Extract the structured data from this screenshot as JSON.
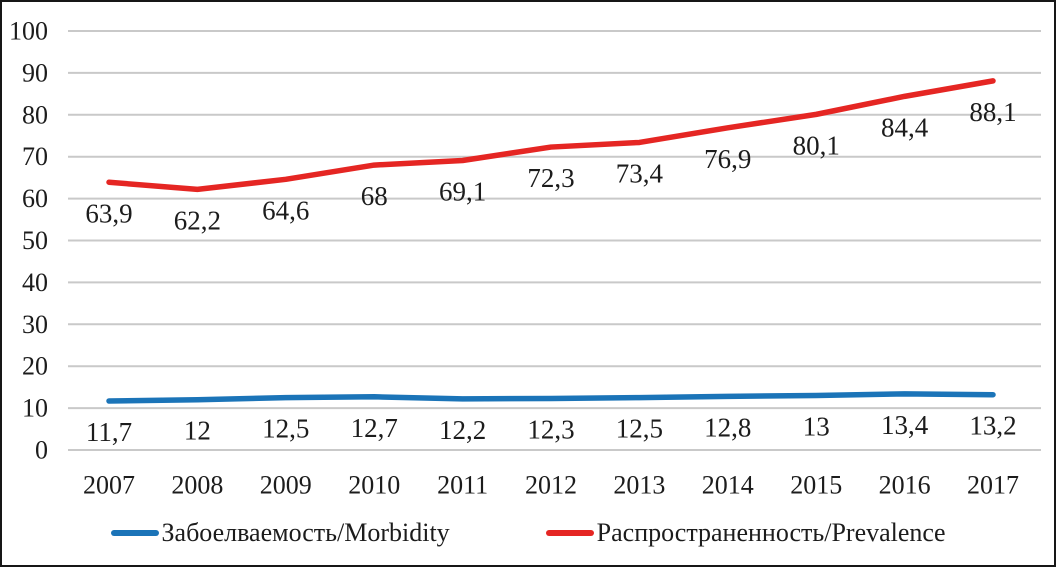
{
  "chart_data": {
    "type": "line",
    "title": "",
    "xlabel": "",
    "ylabel": "",
    "x": [
      "2007",
      "2008",
      "2009",
      "2010",
      "2011",
      "2012",
      "2013",
      "2014",
      "2015",
      "2016",
      "2017"
    ],
    "ylim": [
      0,
      100
    ],
    "yticks": [
      "0",
      "10",
      "20",
      "30",
      "40",
      "50",
      "60",
      "70",
      "80",
      "90",
      "100"
    ],
    "grid": "horizontal",
    "legend_position": "bottom",
    "colors": {
      "morbidity_line": "#1B74B8",
      "prevalence_line": "#E52623",
      "gridline": "#c9c9c9",
      "text": "#1c1c1c"
    },
    "series": [
      {
        "name": "Забоелваемость/Morbidity",
        "color": "#1B74B8",
        "values": [
          11.7,
          12,
          12.5,
          12.7,
          12.2,
          12.3,
          12.5,
          12.8,
          13,
          13.4,
          13.2
        ],
        "labels": [
          "11,7",
          "12",
          "12,5",
          "12,7",
          "12,2",
          "12,3",
          "12,5",
          "12,8",
          "13",
          "13,4",
          "13,2"
        ]
      },
      {
        "name": "Распространенность/Prevalence",
        "color": "#E52623",
        "values": [
          63.9,
          62.2,
          64.6,
          68,
          69.1,
          72.3,
          73.4,
          76.9,
          80.1,
          84.4,
          88.1
        ],
        "labels": [
          "63,9",
          "62,2",
          "64,6",
          "68",
          "69,1",
          "72,3",
          "73,4",
          "76,9",
          "80,1",
          "84,4",
          "88,1"
        ]
      }
    ]
  }
}
